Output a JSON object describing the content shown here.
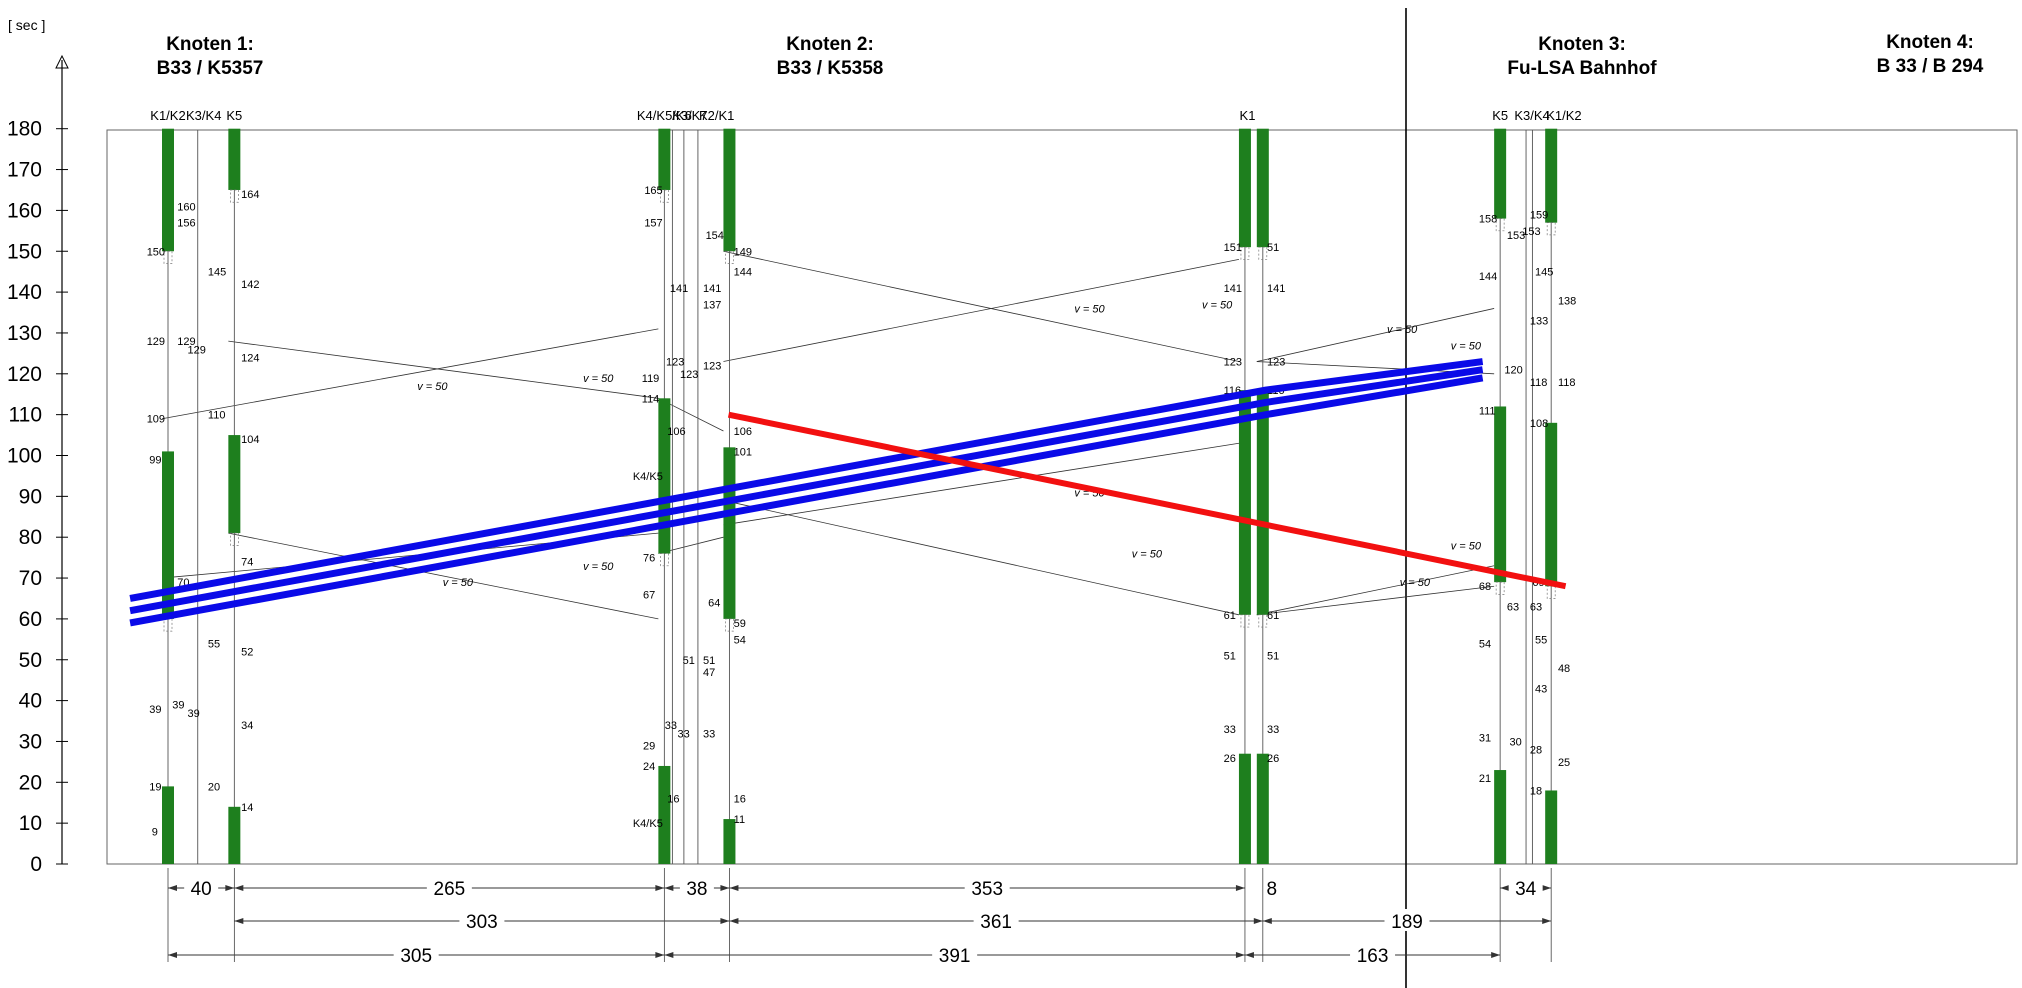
{
  "y_axis": {
    "unit": "[ sec ]",
    "ticks": [
      "180",
      "170",
      "160",
      "150",
      "140",
      "130",
      "120",
      "110",
      "100",
      "90",
      "80",
      "70",
      "60",
      "50",
      "40",
      "30",
      "20",
      "10",
      "0"
    ]
  },
  "nodes": [
    {
      "line1": "Knoten 1:",
      "line2": "B33 / K5357"
    },
    {
      "line1": "Knoten 2:",
      "line2": "B33 / K5358"
    },
    {
      "line1": "Knoten 3:",
      "line2": "Fu-LSA Bahnhof"
    },
    {
      "line1": "Knoten 4:",
      "line2": "B 33  / B 294"
    }
  ],
  "signal_labels": [
    {
      "text": "K1/K2",
      "xv": 0
    },
    {
      "text": "K3/K4",
      "xv": 28
    },
    {
      "text": "K5",
      "xv": 52
    },
    {
      "text": "K4/K5/K6",
      "xv": 389
    },
    {
      "text": "K3/K7",
      "xv": 409
    },
    {
      "text": "K2/K1",
      "xv": 430
    },
    {
      "text": "K1",
      "xv": 846
    },
    {
      "text": "K5",
      "xv": 1044
    },
    {
      "text": "K3/K4",
      "xv": 1069
    },
    {
      "text": "K1/K2",
      "xv": 1094
    }
  ],
  "signal_groups": [
    {
      "xv": 0,
      "green": [
        [
          0,
          19
        ],
        [
          60,
          101
        ],
        [
          150,
          180
        ]
      ]
    },
    {
      "xv": 52,
      "green": [
        [
          0,
          14
        ],
        [
          81,
          105
        ],
        [
          165,
          180
        ]
      ]
    },
    {
      "xv": 389,
      "green": [
        [
          0,
          24
        ],
        [
          76,
          114
        ],
        [
          165,
          180
        ]
      ]
    },
    {
      "xv": 440,
      "green": [
        [
          0,
          11
        ],
        [
          60,
          102
        ],
        [
          150,
          180
        ]
      ]
    },
    {
      "xv": 844,
      "green": [
        [
          0,
          27
        ],
        [
          61,
          116
        ],
        [
          151,
          180
        ]
      ]
    },
    {
      "xv": 858,
      "green": [
        [
          0,
          27
        ],
        [
          61,
          116
        ],
        [
          151,
          180
        ]
      ]
    },
    {
      "xv": 1044,
      "green": [
        [
          0,
          23
        ],
        [
          69,
          112
        ],
        [
          158,
          180
        ]
      ]
    },
    {
      "xv": 1084,
      "green": [
        [
          0,
          18
        ],
        [
          68,
          108
        ],
        [
          157,
          180
        ]
      ]
    }
  ],
  "distances": {
    "row1": [
      {
        "text": "40",
        "from": 0,
        "to": 52
      },
      {
        "text": "265",
        "from": 52,
        "to": 389
      },
      {
        "text": "38",
        "from": 389,
        "to": 440
      },
      {
        "text": "353",
        "from": 440,
        "to": 844
      },
      {
        "text": "8",
        "from": 858,
        "to": 872
      },
      {
        "text": "34",
        "from": 1044,
        "to": 1084
      }
    ],
    "row2": [
      {
        "text": "303",
        "from": 52,
        "to": 440
      },
      {
        "text": "361",
        "from": 440,
        "to": 858
      },
      {
        "text": "189",
        "from": 858,
        "to": 1084
      }
    ],
    "row3": [
      {
        "text": "305",
        "from": 0,
        "to": 389
      },
      {
        "text": "391",
        "from": 389,
        "to": 844
      },
      {
        "text": "163",
        "from": 844,
        "to": 1044
      }
    ]
  },
  "speed_label": "v = 50",
  "band_annotations": [
    {
      "text": "v = 50",
      "xv": 200,
      "yv": 116
    },
    {
      "text": "v = 50",
      "xv": 330,
      "yv": 118
    },
    {
      "text": "v = 50",
      "xv": 715,
      "yv": 135
    },
    {
      "text": "v = 50",
      "xv": 815,
      "yv": 136
    },
    {
      "text": "v = 50",
      "xv": 960,
      "yv": 130
    },
    {
      "text": "v = 50",
      "xv": 1010,
      "yv": 126
    },
    {
      "text": "v = 50",
      "xv": 330,
      "yv": 72
    },
    {
      "text": "v = 50",
      "xv": 220,
      "yv": 68
    },
    {
      "text": "v = 50",
      "xv": 715,
      "yv": 90
    },
    {
      "text": "v = 50",
      "xv": 760,
      "yv": 75
    },
    {
      "text": "v = 50",
      "xv": 970,
      "yv": 68
    },
    {
      "text": "v = 50",
      "xv": 1010,
      "yv": 77
    }
  ],
  "time_labels": [
    {
      "text": "160",
      "xv": 12,
      "yv": 161
    },
    {
      "text": "156",
      "xv": 12,
      "yv": 157
    },
    {
      "text": "150",
      "xv": -12,
      "yv": 150
    },
    {
      "text": "145",
      "xv": 36,
      "yv": 145
    },
    {
      "text": "129",
      "xv": -12,
      "yv": 128
    },
    {
      "text": "129",
      "xv": 12,
      "yv": 128
    },
    {
      "text": "129",
      "xv": 20,
      "yv": 126
    },
    {
      "text": "110",
      "xv": 36,
      "yv": 110
    },
    {
      "text": "109",
      "xv": -12,
      "yv": 109
    },
    {
      "text": "99",
      "xv": -10,
      "yv": 99
    },
    {
      "text": "70",
      "xv": 12,
      "yv": 69
    },
    {
      "text": "55",
      "xv": 36,
      "yv": 54
    },
    {
      "text": "39",
      "xv": -10,
      "yv": 38
    },
    {
      "text": "39",
      "xv": 8,
      "yv": 39
    },
    {
      "text": "39",
      "xv": 20,
      "yv": 37
    },
    {
      "text": "20",
      "xv": 36,
      "yv": 19
    },
    {
      "text": "19",
      "xv": -10,
      "yv": 19
    },
    {
      "text": "9",
      "xv": -8,
      "yv": 8
    },
    {
      "text": "164",
      "xv": 62,
      "yv": 164
    },
    {
      "text": "142",
      "xv": 62,
      "yv": 142
    },
    {
      "text": "124",
      "xv": 62,
      "yv": 124
    },
    {
      "text": "104",
      "xv": 62,
      "yv": 104
    },
    {
      "text": "74",
      "xv": 62,
      "yv": 74
    },
    {
      "text": "52",
      "xv": 62,
      "yv": 52
    },
    {
      "text": "34",
      "xv": 62,
      "yv": 34
    },
    {
      "text": "14",
      "xv": 62,
      "yv": 14
    },
    {
      "text": "165",
      "xv": 378,
      "yv": 165
    },
    {
      "text": "157",
      "xv": 378,
      "yv": 157
    },
    {
      "text": "141",
      "xv": 398,
      "yv": 141
    },
    {
      "text": "141",
      "xv": 424,
      "yv": 141
    },
    {
      "text": "137",
      "xv": 424,
      "yv": 137
    },
    {
      "text": "123",
      "xv": 395,
      "yv": 123
    },
    {
      "text": "123",
      "xv": 406,
      "yv": 120
    },
    {
      "text": "123",
      "xv": 424,
      "yv": 122
    },
    {
      "text": "119",
      "xv": 376,
      "yv": 119
    },
    {
      "text": "114",
      "xv": 376,
      "yv": 114
    },
    {
      "text": "106",
      "xv": 396,
      "yv": 106
    },
    {
      "text": "K4/K5",
      "xv": 369,
      "yv": 95
    },
    {
      "text": "76",
      "xv": 377,
      "yv": 75
    },
    {
      "text": "67",
      "xv": 377,
      "yv": 66
    },
    {
      "text": "64",
      "xv": 428,
      "yv": 64
    },
    {
      "text": "51",
      "xv": 408,
      "yv": 50
    },
    {
      "text": "51",
      "xv": 424,
      "yv": 50
    },
    {
      "text": "47",
      "xv": 424,
      "yv": 47
    },
    {
      "text": "33",
      "xv": 394,
      "yv": 34
    },
    {
      "text": "33",
      "xv": 404,
      "yv": 32
    },
    {
      "text": "33",
      "xv": 424,
      "yv": 32
    },
    {
      "text": "29",
      "xv": 377,
      "yv": 29
    },
    {
      "text": "24",
      "xv": 377,
      "yv": 24
    },
    {
      "text": "16",
      "xv": 396,
      "yv": 16
    },
    {
      "text": "K4/K5",
      "xv": 369,
      "yv": 10
    },
    {
      "text": "154",
      "xv": 426,
      "yv": 154
    },
    {
      "text": "149",
      "xv": 448,
      "yv": 150
    },
    {
      "text": "144",
      "xv": 448,
      "yv": 145
    },
    {
      "text": "106",
      "xv": 448,
      "yv": 106
    },
    {
      "text": "101",
      "xv": 448,
      "yv": 101
    },
    {
      "text": "59",
      "xv": 448,
      "yv": 59
    },
    {
      "text": "54",
      "xv": 448,
      "yv": 55
    },
    {
      "text": "16",
      "xv": 448,
      "yv": 16
    },
    {
      "text": "11",
      "xv": 448,
      "yv": 11
    },
    {
      "text": "151",
      "xv": 832,
      "yv": 151
    },
    {
      "text": "141",
      "xv": 832,
      "yv": 141
    },
    {
      "text": "123",
      "xv": 832,
      "yv": 123
    },
    {
      "text": "116",
      "xv": 832,
      "yv": 116
    },
    {
      "text": "61",
      "xv": 832,
      "yv": 61
    },
    {
      "text": "51",
      "xv": 832,
      "yv": 51
    },
    {
      "text": "33",
      "xv": 832,
      "yv": 33
    },
    {
      "text": "26",
      "xv": 832,
      "yv": 26
    },
    {
      "text": "51",
      "xv": 866,
      "yv": 151
    },
    {
      "text": "141",
      "xv": 866,
      "yv": 141
    },
    {
      "text": "123",
      "xv": 866,
      "yv": 123
    },
    {
      "text": "116",
      "xv": 866,
      "yv": 116
    },
    {
      "text": "61",
      "xv": 866,
      "yv": 61
    },
    {
      "text": "51",
      "xv": 866,
      "yv": 51
    },
    {
      "text": "33",
      "xv": 866,
      "yv": 33
    },
    {
      "text": "26",
      "xv": 866,
      "yv": 26
    },
    {
      "text": "158",
      "xv": 1032,
      "yv": 158
    },
    {
      "text": "153",
      "xv": 1054,
      "yv": 154
    },
    {
      "text": "144",
      "xv": 1032,
      "yv": 144
    },
    {
      "text": "120",
      "xv": 1052,
      "yv": 121
    },
    {
      "text": "111",
      "xv": 1032,
      "yv": 111
    },
    {
      "text": "68",
      "xv": 1032,
      "yv": 68
    },
    {
      "text": "63",
      "xv": 1054,
      "yv": 63
    },
    {
      "text": "54",
      "xv": 1032,
      "yv": 54
    },
    {
      "text": "31",
      "xv": 1032,
      "yv": 31
    },
    {
      "text": "30",
      "xv": 1056,
      "yv": 30
    },
    {
      "text": "21",
      "xv": 1032,
      "yv": 21
    },
    {
      "text": "159",
      "xv": 1072,
      "yv": 159
    },
    {
      "text": "153",
      "xv": 1066,
      "yv": 155
    },
    {
      "text": "145",
      "xv": 1076,
      "yv": 145
    },
    {
      "text": "133",
      "xv": 1072,
      "yv": 133
    },
    {
      "text": "118",
      "xv": 1072,
      "yv": 118
    },
    {
      "text": "108",
      "xv": 1072,
      "yv": 108
    },
    {
      "text": "69",
      "xv": 1074,
      "yv": 69
    },
    {
      "text": "63",
      "xv": 1072,
      "yv": 63
    },
    {
      "text": "55",
      "xv": 1076,
      "yv": 55
    },
    {
      "text": "43",
      "xv": 1076,
      "yv": 43
    },
    {
      "text": "28",
      "xv": 1072,
      "yv": 28
    },
    {
      "text": "18",
      "xv": 1072,
      "yv": 18
    },
    {
      "text": "138",
      "xv": 1094,
      "yv": 138
    },
    {
      "text": "118",
      "xv": 1094,
      "yv": 118
    },
    {
      "text": "48",
      "xv": 1094,
      "yv": 48
    },
    {
      "text": "25",
      "xv": 1094,
      "yv": 25
    }
  ],
  "green_band_lines": [
    [
      [
        0,
        109
      ],
      [
        389,
        131
      ]
    ],
    [
      [
        440,
        123
      ],
      [
        844,
        148
      ]
    ],
    [
      [
        858,
        123
      ],
      [
        1044,
        136
      ]
    ],
    [
      [
        52,
        128
      ],
      [
        389,
        114
      ]
    ],
    [
      [
        440,
        150
      ],
      [
        844,
        123
      ]
    ],
    [
      [
        858,
        123
      ],
      [
        1044,
        120
      ]
    ],
    [
      [
        0,
        70
      ],
      [
        389,
        81
      ]
    ],
    [
      [
        440,
        83
      ],
      [
        844,
        103
      ]
    ],
    [
      [
        858,
        61
      ],
      [
        1044,
        73
      ]
    ],
    [
      [
        52,
        81
      ],
      [
        389,
        60
      ]
    ],
    [
      [
        440,
        89
      ],
      [
        844,
        61
      ]
    ],
    [
      [
        858,
        61
      ],
      [
        1044,
        68
      ]
    ],
    [
      [
        389,
        76
      ],
      [
        440,
        80
      ]
    ],
    [
      [
        389,
        114
      ],
      [
        440,
        106
      ]
    ]
  ],
  "overlay": {
    "blue": [
      [
        [
          -25,
          65
        ],
        [
          865,
          116
        ],
        [
          1035,
          123
        ]
      ],
      [
        [
          -25,
          62
        ],
        [
          865,
          113
        ],
        [
          1035,
          121
        ]
      ],
      [
        [
          -25,
          59
        ],
        [
          865,
          110
        ],
        [
          1035,
          119
        ]
      ]
    ],
    "red": [
      [
        [
          444,
          110
        ],
        [
          1100,
          68
        ]
      ]
    ]
  }
}
